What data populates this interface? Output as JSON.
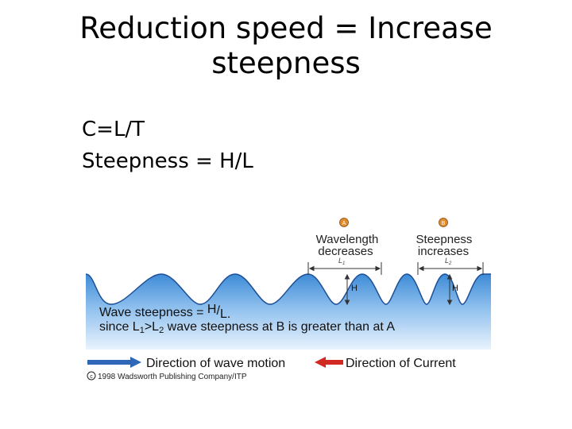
{
  "slide": {
    "title_line1": "Reduction speed = Increase",
    "title_line2": "steepness",
    "bullets": [
      "C=L/T",
      "Steepness = H/L"
    ]
  },
  "figure": {
    "marker_a": "A",
    "marker_b": "B",
    "label_a_line1": "Wavelength",
    "label_a_line2": "decreases",
    "label_b_line1": "Steepness",
    "label_b_line2": "increases",
    "l1": "L",
    "l1_sub": "1",
    "l2": "L",
    "l2_sub": "2",
    "h": "H",
    "eq_prefix": "Wave steepness = ",
    "eq_h": "H",
    "eq_slash": "/",
    "eq_l": "L.",
    "since_prefix": "since L",
    "since_sub1": "1",
    "since_mid": ">L",
    "since_sub2": "2",
    "since_rest": " wave steepness at B is greater than at A",
    "legend_wave": "Direction of wave motion",
    "legend_current": "Direction of Current",
    "copyright": "1998 Wadsworth Publishing Company/ITP",
    "colors": {
      "water_top": "#3e8bd6",
      "water_mid": "#8fc0ee",
      "water_bottom": "#e9f3fd",
      "wave_arrow": "#2f66b8",
      "current_arrow": "#d12a22",
      "marker": "#e08a2a"
    }
  }
}
